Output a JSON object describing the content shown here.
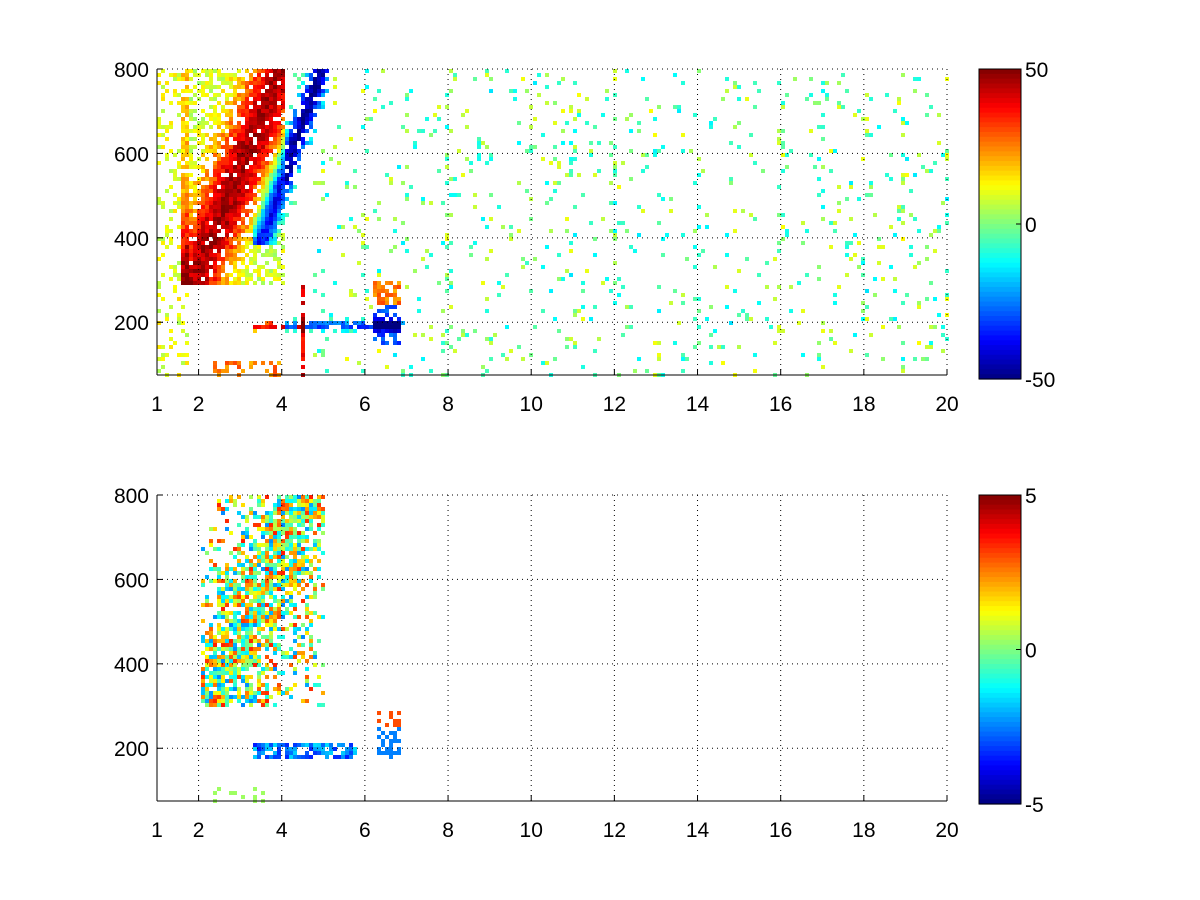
{
  "chart_data": [
    {
      "type": "heatmap",
      "title": "",
      "xlabel": "",
      "ylabel": "",
      "xlim": [
        1,
        20
      ],
      "ylim": [
        75,
        800
      ],
      "x_ticks": [
        "1",
        "2",
        "4",
        "6",
        "8",
        "10",
        "12",
        "14",
        "16",
        "18",
        "20"
      ],
      "y_ticks": [
        "200",
        "400",
        "600",
        "800"
      ],
      "grid": true,
      "colormap": "jet",
      "colorbar": {
        "range": [
          -50,
          50
        ],
        "ticks": [
          "50",
          "0",
          "-50"
        ]
      },
      "features": [
        {
          "desc": "positive ridge",
          "x": [
            1.8,
            4.0
          ],
          "y": [
            300,
            800
          ],
          "peak": 42
        },
        {
          "desc": "negative ridge",
          "x": [
            3.5,
            5.0
          ],
          "y": [
            400,
            800
          ],
          "peak": -45
        },
        {
          "desc": "band near 200",
          "x": [
            3.2,
            7.0
          ],
          "y": [
            165,
            225
          ],
          "range": [
            -35,
            45
          ]
        },
        {
          "desc": "sparse noise",
          "x": [
            5.0,
            20.0
          ],
          "y": [
            75,
            800
          ],
          "range": [
            -10,
            10
          ]
        }
      ]
    },
    {
      "type": "heatmap",
      "title": "",
      "xlabel": "",
      "ylabel": "",
      "xlim": [
        1,
        20
      ],
      "ylim": [
        75,
        800
      ],
      "x_ticks": [
        "1",
        "2",
        "4",
        "6",
        "8",
        "10",
        "12",
        "14",
        "16",
        "18",
        "20"
      ],
      "y_ticks": [
        "200",
        "400",
        "600",
        "800"
      ],
      "grid": true,
      "colormap": "jet",
      "colorbar": {
        "range": [
          -5,
          5
        ],
        "ticks": [
          "5",
          "0",
          "-5"
        ]
      },
      "features": [
        {
          "desc": "main cluster",
          "x": [
            2.2,
            5.0
          ],
          "y": [
            300,
            800
          ],
          "range": [
            -5,
            5
          ]
        },
        {
          "desc": "band near 200",
          "x": [
            3.2,
            5.8
          ],
          "y": [
            165,
            230
          ],
          "range": [
            -4,
            2
          ]
        },
        {
          "desc": "patch near 6.5",
          "x": [
            6.3,
            6.9
          ],
          "y": [
            170,
            290
          ],
          "range": [
            -3,
            4
          ]
        }
      ]
    }
  ]
}
